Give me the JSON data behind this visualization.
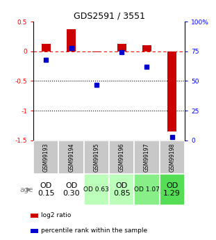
{
  "title": "GDS2591 / 3551",
  "samples": [
    "GSM99193",
    "GSM99194",
    "GSM99195",
    "GSM99196",
    "GSM99197",
    "GSM99198"
  ],
  "log2_ratio": [
    0.12,
    0.37,
    -0.02,
    0.13,
    0.1,
    -1.35
  ],
  "percentile_rank": [
    68,
    78,
    47,
    74,
    62,
    3
  ],
  "ylim_left": [
    -1.5,
    0.5
  ],
  "ylim_right": [
    0,
    100
  ],
  "yticks_left": [
    0.5,
    0,
    -0.5,
    -1.0,
    -1.5
  ],
  "ytick_labels_left": [
    "0.5",
    "0",
    "-0.5",
    "-1",
    "-1.5"
  ],
  "yticks_right": [
    100,
    75,
    50,
    25,
    0
  ],
  "ytick_labels_right": [
    "100%",
    "75",
    "50",
    "25",
    "0"
  ],
  "dotted_lines": [
    -0.5,
    -1.0
  ],
  "bar_color_red": "#cc0000",
  "bar_color_blue": "#0000cc",
  "age_labels": [
    "OD\n0.15",
    "OD\n0.30",
    "OD 0.63",
    "OD\n0.85",
    "OD 1.07",
    "OD\n1.29"
  ],
  "age_bg_colors": [
    "#ffffff",
    "#ffffff",
    "#bbffbb",
    "#bbffbb",
    "#88ee88",
    "#55dd55"
  ],
  "age_fontsize": [
    8,
    8,
    6.5,
    8,
    6.5,
    8
  ],
  "legend_red": "log2 ratio",
  "legend_blue": "percentile rank within the sample",
  "bar_width": 0.35
}
